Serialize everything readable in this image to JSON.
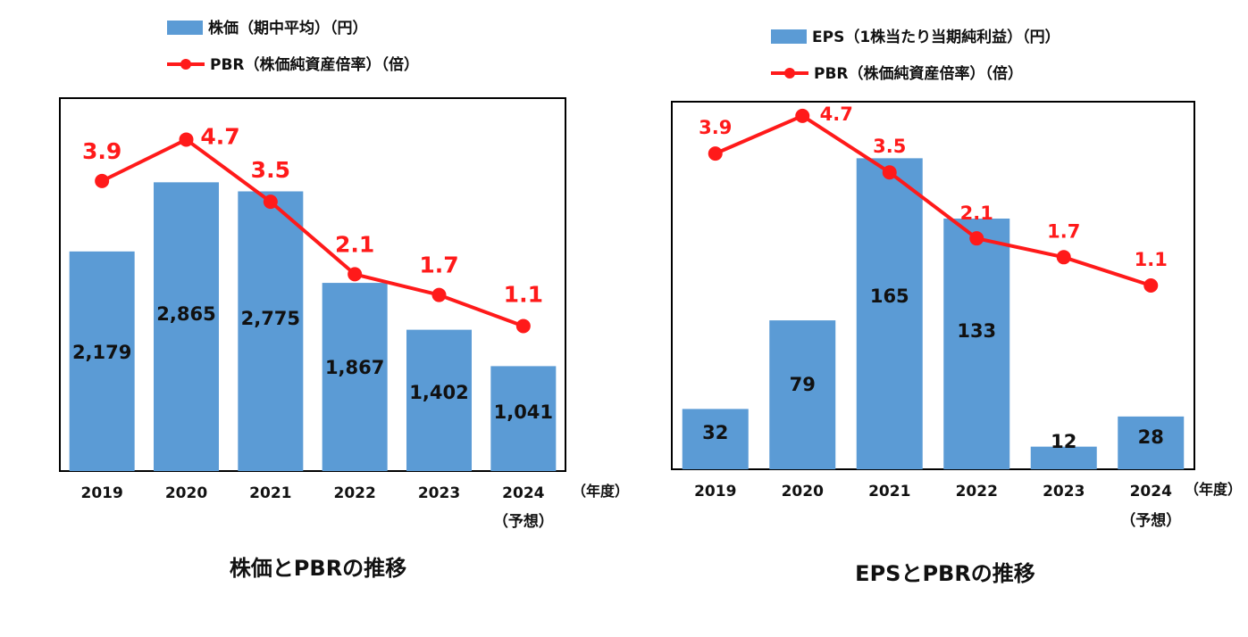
{
  "chart_data": [
    {
      "type": "bar",
      "title": "株価とPBRの推移",
      "categories": [
        "2019",
        "2020",
        "2021",
        "2022",
        "2023",
        "2024"
      ],
      "category_sublabels": [
        "",
        "",
        "",
        "",
        "",
        "（予想）"
      ],
      "x_unit": "（年度）",
      "series": [
        {
          "name": "株価（期中平均）（円）",
          "kind": "bar",
          "color": "#5b9bd5",
          "values": [
            2179,
            2865,
            2775,
            1867,
            1402,
            1041
          ],
          "labels": [
            "2,179",
            "2,865",
            "2,775",
            "1,867",
            "1,402",
            "1,041"
          ]
        },
        {
          "name": "PBR（株価純資産倍率）（倍）",
          "kind": "line",
          "color": "#ff1a1a",
          "values": [
            3.9,
            4.7,
            3.5,
            2.1,
            1.7,
            1.1
          ],
          "labels": [
            "3.9",
            "4.7",
            "3.5",
            "2.1",
            "1.7",
            "1.1"
          ]
        }
      ],
      "bar_axis_range": [
        0,
        3700
      ],
      "line_axis_range": [
        -1.7,
        5.5
      ],
      "grid": false,
      "legend_position": "top"
    },
    {
      "type": "bar",
      "title": "EPSとPBRの推移",
      "categories": [
        "2019",
        "2020",
        "2021",
        "2022",
        "2023",
        "2024"
      ],
      "category_sublabels": [
        "",
        "",
        "",
        "",
        "",
        "（予想）"
      ],
      "x_unit": "（年度）",
      "series": [
        {
          "name": "EPS（1株当たり当期純利益）（円）",
          "kind": "bar",
          "color": "#5b9bd5",
          "values": [
            32,
            79,
            165,
            133,
            12,
            28
          ],
          "labels": [
            "32",
            "79",
            "165",
            "133",
            "12",
            "28"
          ]
        },
        {
          "name": "PBR（株価純資産倍率）（倍）",
          "kind": "line",
          "color": "#ff1a1a",
          "values": [
            3.9,
            4.7,
            3.5,
            2.1,
            1.7,
            1.1
          ],
          "labels": [
            "3.9",
            "4.7",
            "3.5",
            "2.1",
            "1.7",
            "1.1"
          ]
        }
      ],
      "bar_axis_range": [
        0,
        195
      ],
      "line_axis_range": [
        -2.8,
        5.0
      ],
      "grid": false,
      "legend_position": "top"
    }
  ]
}
